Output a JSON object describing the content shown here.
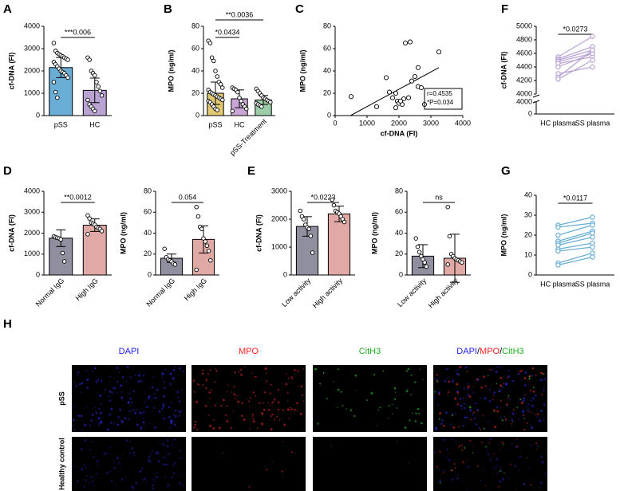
{
  "chart_data": [
    {
      "panel": "A",
      "type": "bar",
      "ylabel": "cf-DNA (FI)",
      "categories": [
        "pSS",
        "HC"
      ],
      "values": [
        2150,
        1130
      ],
      "errors": [
        450,
        550
      ],
      "colors": [
        "#6aaed6",
        "#b9a3d3"
      ],
      "ylim": [
        0,
        4000
      ],
      "yticks": [
        0,
        1000,
        2000,
        3000,
        4000
      ],
      "points": [
        [
          3250,
          2900,
          2800,
          2750,
          2700,
          2650,
          2600,
          2550,
          2500,
          2400,
          2300,
          2200,
          2100,
          2000,
          1950,
          1900,
          1800,
          1700,
          1500,
          1050,
          800
        ],
        [
          2600,
          2500,
          2000,
          1900,
          1800,
          1500,
          1300,
          1100,
          900,
          700,
          500,
          400,
          300,
          200
        ]
      ],
      "annotations": [
        {
          "text": "***0.006",
          "span": [
            0,
            1
          ]
        }
      ]
    },
    {
      "panel": "B",
      "type": "bar",
      "ylabel": "MPO (ng/ml)",
      "categories": [
        "pSS",
        "HC",
        "pSS-Treatment"
      ],
      "values": [
        20,
        15,
        14
      ],
      "errors": [
        10,
        8,
        4
      ],
      "colors": [
        "#e3c873",
        "#c9a6d6",
        "#9ccca8"
      ],
      "ylim": [
        0,
        80
      ],
      "yticks": [
        0,
        20,
        40,
        60,
        80
      ],
      "points": [
        [
          67,
          65,
          52,
          49,
          40,
          35,
          30,
          28,
          25,
          23,
          21,
          20,
          19,
          18,
          17,
          16,
          15,
          14,
          13,
          12,
          10,
          8,
          6,
          5
        ],
        [
          25,
          24,
          23,
          21,
          16,
          13,
          10,
          8,
          6,
          4
        ],
        [
          24,
          22,
          20,
          18,
          16,
          15,
          14,
          13,
          12,
          11,
          10,
          9,
          8
        ]
      ],
      "annotations": [
        {
          "text": "*0.0434",
          "span": [
            0,
            1
          ]
        },
        {
          "text": "**0.0036",
          "span": [
            0,
            2
          ]
        }
      ]
    },
    {
      "panel": "C",
      "type": "scatter",
      "xlabel": "cf-DNA (FI)",
      "ylabel": "MPO (ng/ml)",
      "x": [
        500,
        1300,
        1600,
        1700,
        1800,
        1900,
        1950,
        2000,
        2100,
        2150,
        2200,
        2350,
        2300,
        2400,
        2500,
        2600,
        2600,
        2700,
        2800,
        3250,
        1900,
        2050
      ],
      "y": [
        17,
        8,
        34,
        21,
        16,
        20,
        13,
        11,
        10,
        15,
        65,
        66,
        16,
        31,
        35,
        43,
        26,
        25,
        10,
        57,
        7,
        13
      ],
      "fit": {
        "x": [
          480,
          3250
        ],
        "y": [
          0,
          43
        ]
      },
      "stats": [
        "r=0.4535",
        "*P=0.034"
      ],
      "xlim": [
        0,
        4000
      ],
      "xticks": [
        0,
        1000,
        2000,
        3000,
        4000
      ],
      "ylim": [
        0,
        80
      ],
      "yticks": [
        0,
        20,
        40,
        60,
        80
      ]
    },
    {
      "panel": "F",
      "type": "paired",
      "ylabel": "cf-DNA (FI)",
      "categories": [
        "HC plasma",
        "SS plasma"
      ],
      "color": "#b9a3d3",
      "values": [
        [
          4550,
          4520,
          4500,
          4480,
          4450,
          4400,
          4300,
          4250,
          4220
        ],
        [
          4850,
          4700,
          4650,
          4600,
          4550,
          4600,
          4400,
          4650,
          4500
        ]
      ],
      "ylim": [
        4000,
        5000
      ],
      "yticks": [
        4000,
        4200,
        4400,
        4600,
        4800,
        5000
      ],
      "lower_ylim": [
        0,
        4000
      ],
      "lower_yticks": [
        0,
        4000
      ],
      "annotations": [
        {
          "text": "*0.0273",
          "span": [
            0,
            1
          ]
        }
      ]
    },
    {
      "panel": "D",
      "type": "bar",
      "ylabel": "cf-DNA (FI)",
      "categories": [
        "Normal IgG",
        "High IgG"
      ],
      "values": [
        1760,
        2380
      ],
      "errors": [
        400,
        300
      ],
      "colors": [
        "#8f8fa0",
        "#e0a9a6"
      ],
      "ylim": [
        0,
        4000
      ],
      "yticks": [
        0,
        1000,
        2000,
        3000,
        4000
      ],
      "points": [
        [
          1850,
          1800,
          1780,
          1750,
          1700,
          1050,
          650
        ],
        [
          2850,
          2700,
          2500,
          2450,
          2400,
          2300,
          2250,
          2200,
          2100,
          1950
        ]
      ],
      "annotations": [
        {
          "text": "**0.0012",
          "span": [
            0,
            1
          ]
        }
      ]
    },
    {
      "type": "bar",
      "ylabel": "MPO (ng/ml)",
      "categories": [
        "Normal IgG",
        "High IgG"
      ],
      "values": [
        16,
        34
      ],
      "errors": [
        4,
        13
      ],
      "colors": [
        "#8f8fa0",
        "#e0a9a6"
      ],
      "ylim": [
        0,
        80
      ],
      "yticks": [
        0,
        20,
        40,
        60,
        80
      ],
      "points": [
        [
          25,
          17,
          15,
          14,
          13,
          11,
          10
        ],
        [
          65,
          56,
          46,
          44,
          35,
          32,
          28,
          23,
          14,
          5
        ]
      ],
      "annotations": [
        {
          "text": "0.054",
          "span": [
            0,
            1
          ]
        }
      ]
    },
    {
      "panel": "E",
      "type": "bar",
      "ylabel": "cf-DNA (FI)",
      "categories": [
        "Low activity",
        "High activity"
      ],
      "values": [
        1740,
        2190
      ],
      "errors": [
        350,
        280
      ],
      "colors": [
        "#8f8fa0",
        "#e0a9a6"
      ],
      "ylim": [
        0,
        3000
      ],
      "yticks": [
        0,
        1000,
        2000,
        3000
      ],
      "points": [
        [
          2300,
          2100,
          2000,
          1800,
          1700,
          1650,
          1400,
          800
        ],
        [
          2700,
          2500,
          2300,
          2250,
          2200,
          2100,
          2000,
          1900
        ]
      ],
      "annotations": [
        {
          "text": "*0.0223",
          "span": [
            0,
            1
          ]
        }
      ]
    },
    {
      "type": "bar",
      "ylabel": "MPO (ng/ml)",
      "categories": [
        "Low activity",
        "High activity"
      ],
      "values": [
        18,
        16
      ],
      "errors": [
        11,
        23
      ],
      "colors": [
        "#8f8fa0",
        "#e0a9a6"
      ],
      "ylim": [
        0,
        80
      ],
      "yticks": [
        0,
        20,
        40,
        60,
        80
      ],
      "points": [
        [
          35,
          27,
          22,
          18,
          15,
          12,
          8
        ],
        [
          65,
          37,
          20,
          18,
          16,
          15,
          14,
          13,
          12,
          10
        ]
      ],
      "annotations": [
        {
          "text": "ns",
          "span": [
            0,
            1
          ]
        }
      ]
    },
    {
      "panel": "G",
      "type": "paired",
      "ylabel": "MPO (ng/ml)",
      "categories": [
        "HC plasma",
        "SS plasma"
      ],
      "color": "#6aaed6",
      "values": [
        [
          25,
          24,
          20,
          17,
          16,
          15,
          13,
          12,
          6,
          5
        ],
        [
          29,
          26,
          25,
          22,
          21,
          19,
          16,
          14,
          11,
          9
        ]
      ],
      "ylim": [
        0,
        40
      ],
      "yticks": [
        0,
        10,
        20,
        30,
        40
      ],
      "annotations": [
        {
          "text": "*0.0117",
          "span": [
            0,
            1
          ]
        }
      ]
    }
  ],
  "image_grid": {
    "panel": "H",
    "columns": [
      [
        {
          "text": "DAPI",
          "color": "#2020ff"
        }
      ],
      [
        {
          "text": "MPO",
          "color": "#ff2020"
        }
      ],
      [
        {
          "text": "CitH3",
          "color": "#20b020"
        }
      ],
      [
        {
          "text": "DAPI",
          "color": "#2020ff"
        },
        {
          "text": "/",
          "color": "#000000"
        },
        {
          "text": "MPO",
          "color": "#ff2020"
        },
        {
          "text": "/",
          "color": "#000000"
        },
        {
          "text": "CitH3",
          "color": "#20b020"
        }
      ]
    ],
    "rows": [
      "pSS",
      "Healthy control"
    ]
  }
}
